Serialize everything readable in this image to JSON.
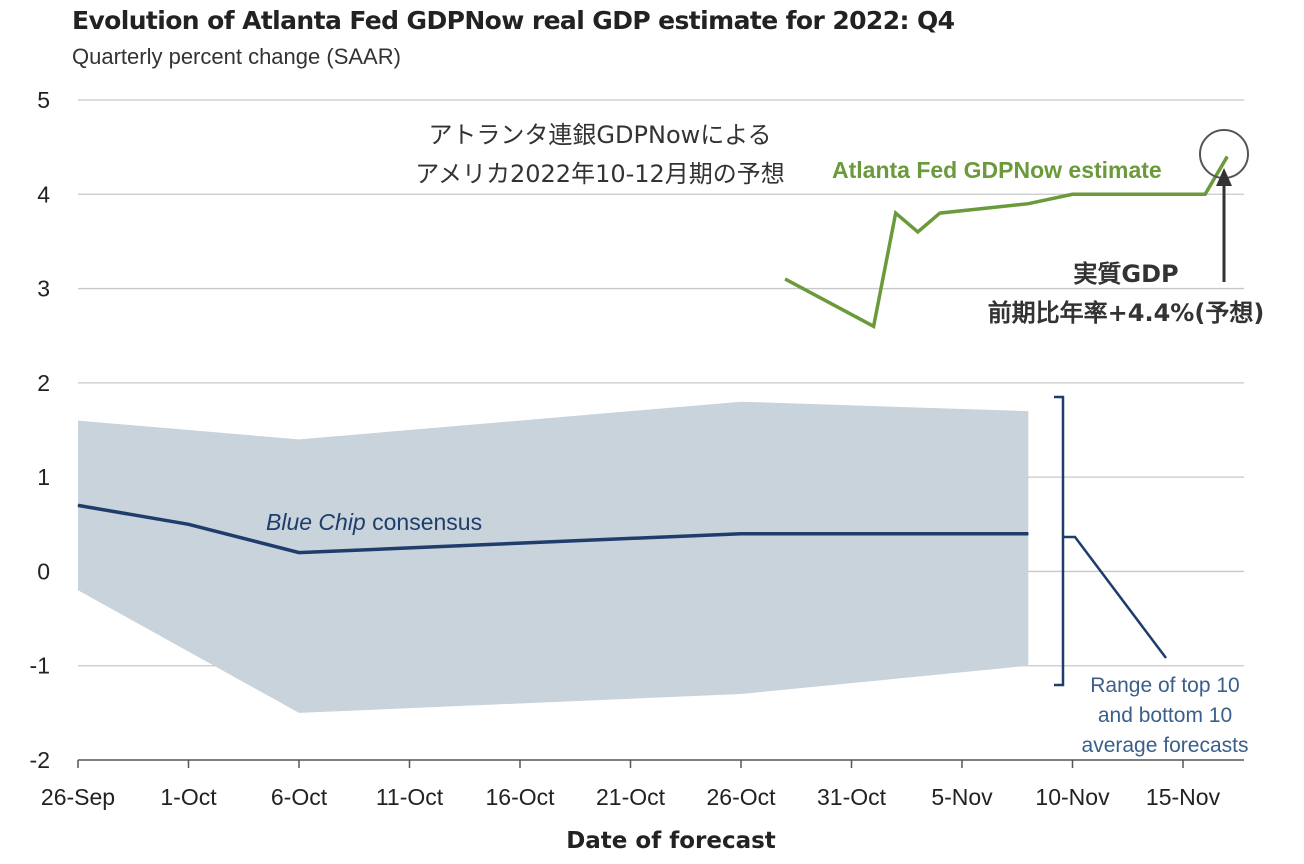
{
  "chart_data": {
    "type": "line",
    "title": "Evolution of Atlanta Fed GDPNow real GDP estimate for 2022: Q4",
    "subtitle": "Quarterly percent change (SAAR)",
    "xlabel": "Date of forecast",
    "ylabel": "",
    "ylim": [
      -2,
      5
    ],
    "yticks": [
      -2,
      -1,
      0,
      1,
      2,
      3,
      4,
      5
    ],
    "ytick_labels": [
      "-2",
      "-1",
      "0",
      "1",
      "2",
      "3",
      "4",
      "5"
    ],
    "xlim": [
      "2022-09-26",
      "2022-11-17"
    ],
    "xticks": [
      "2022-09-26",
      "2022-10-01",
      "2022-10-06",
      "2022-10-11",
      "2022-10-16",
      "2022-10-21",
      "2022-10-26",
      "2022-10-31",
      "2022-11-05",
      "2022-11-10",
      "2022-11-15"
    ],
    "xtick_labels": [
      "26-Sep",
      "1-Oct",
      "6-Oct",
      "11-Oct",
      "16-Oct",
      "21-Oct",
      "26-Oct",
      "31-Oct",
      "5-Nov",
      "10-Nov",
      "15-Nov"
    ],
    "grid": "horizontal",
    "series": [
      {
        "name": "Atlanta Fed GDPNow estimate",
        "color": "#6a9a3a",
        "x": [
          "2022-10-28",
          "2022-11-01",
          "2022-11-02",
          "2022-11-03",
          "2022-11-04",
          "2022-11-08",
          "2022-11-10",
          "2022-11-16",
          "2022-11-17"
        ],
        "y": [
          3.1,
          2.6,
          3.8,
          3.6,
          3.8,
          3.9,
          4.0,
          4.0,
          4.4
        ]
      },
      {
        "name": "Blue Chip consensus",
        "color": "#1f3d6b",
        "x": [
          "2022-09-26",
          "2022-10-01",
          "2022-10-06",
          "2022-10-11",
          "2022-10-16",
          "2022-10-21",
          "2022-10-26",
          "2022-10-31",
          "2022-11-05",
          "2022-11-08"
        ],
        "y": [
          0.7,
          0.5,
          0.2,
          0.25,
          0.3,
          0.35,
          0.4,
          0.4,
          0.4,
          0.4
        ]
      }
    ],
    "band": {
      "name": "Range of top 10 and bottom 10 average forecasts",
      "color": "#c8d3dc",
      "x": [
        "2022-09-26",
        "2022-10-06",
        "2022-10-26",
        "2022-11-08"
      ],
      "upper": [
        1.6,
        1.4,
        1.8,
        1.7
      ],
      "lower": [
        -0.2,
        -1.5,
        -1.3,
        -1.0
      ]
    },
    "annotations": {
      "green_label": "Atlanta Fed GDPNow estimate",
      "blue_label_italic": "Blue Chip",
      "blue_label_rest": " consensus",
      "range_label": [
        "Range of top 10",
        "and bottom 10",
        "average forecasts"
      ],
      "jp_title": [
        "アトランタ連銀GDPNowによる",
        "アメリカ2022年10-12月期の予想"
      ],
      "jp_callout": [
        "実質GDP",
        "前期比年率+4.4%(予想)"
      ]
    }
  }
}
